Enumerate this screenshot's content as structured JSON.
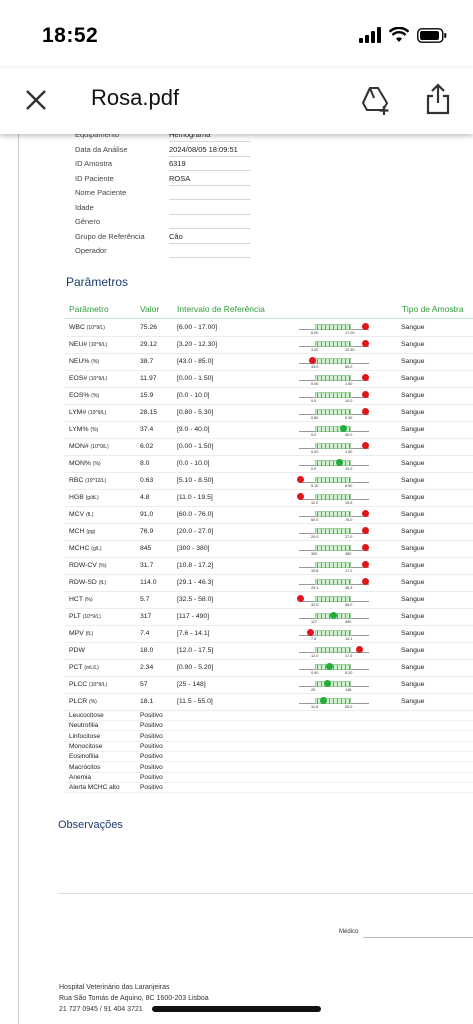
{
  "status": {
    "time": "18:52"
  },
  "nav": {
    "title": "Rosa.pdf",
    "icons": [
      "close-icon",
      "drive-add-icon",
      "share-icon"
    ]
  },
  "info": [
    {
      "label": "Equipamento",
      "value": "Hemograma"
    },
    {
      "label": "Data da Análise",
      "value": "2024/08/05 18:09:51"
    },
    {
      "label": "ID Amostra",
      "value": "6319"
    },
    {
      "label": "ID Paciente",
      "value": "ROSA"
    },
    {
      "label": "Nome Paciente",
      "value": ""
    },
    {
      "label": "Idade",
      "value": ""
    },
    {
      "label": "Gênero",
      "value": ""
    },
    {
      "label": "Grupo de Referência",
      "value": "Cão"
    },
    {
      "label": "Operador",
      "value": ""
    }
  ],
  "section_title": "Parâmetros",
  "headers": {
    "param": "Parâmetro",
    "valor": "Valor",
    "intervalo": "Intervalo de Referência",
    "tipo": "Tipo de Amostra"
  },
  "rows": [
    {
      "name": "WBC",
      "unit": "(10^9/L)",
      "value": "75.26",
      "range": "[6.00 - 17.00]",
      "lo": "6.00",
      "hi": "17.00",
      "pos": 1.0,
      "status": "high",
      "sample": "Sangue"
    },
    {
      "name": "NEU#",
      "unit": "(10^9/L)",
      "value": "29.12",
      "range": "[3.20 - 12.30]",
      "lo": "3.20",
      "hi": "12.30",
      "pos": 1.0,
      "status": "high",
      "sample": "Sangue"
    },
    {
      "name": "NEU%",
      "unit": "(%)",
      "value": "38.7",
      "range": "[43.0 - 85.0]",
      "lo": "43.0",
      "hi": "85.0",
      "pos": 0.18,
      "status": "low",
      "sample": "Sangue"
    },
    {
      "name": "EOS#",
      "unit": "(10^9/L)",
      "value": "11.97",
      "range": "[0.00 - 1.50]",
      "lo": "0.00",
      "hi": "1.50",
      "pos": 1.0,
      "status": "high",
      "sample": "Sangue"
    },
    {
      "name": "EOS%",
      "unit": "(%)",
      "value": "15.9",
      "range": "[0.0 - 10.0]",
      "lo": "0.0",
      "hi": "10.0",
      "pos": 1.0,
      "status": "high",
      "sample": "Sangue"
    },
    {
      "name": "LYM#",
      "unit": "(10^9/L)",
      "value": "28.15",
      "range": "[0.80 - 5.30]",
      "lo": "0.80",
      "hi": "5.30",
      "pos": 1.0,
      "status": "high",
      "sample": "Sangue"
    },
    {
      "name": "LYM%",
      "unit": "(%)",
      "value": "37.4",
      "range": "[9.0 - 40.0]",
      "lo": "9.0",
      "hi": "40.0",
      "pos": 0.66,
      "status": "normal",
      "sample": "Sangue"
    },
    {
      "name": "MON#",
      "unit": "(10^9/L)",
      "value": "6.02",
      "range": "[0.00 - 1.50]",
      "lo": "0.00",
      "hi": "1.50",
      "pos": 1.0,
      "status": "high",
      "sample": "Sangue"
    },
    {
      "name": "MON%",
      "unit": "(%)",
      "value": "8.0",
      "range": "[0.0 - 10.0]",
      "lo": "0.0",
      "hi": "10.0",
      "pos": 0.6,
      "status": "normal",
      "sample": "Sangue"
    },
    {
      "name": "RBC",
      "unit": "(10^12/L)",
      "value": "0.63",
      "range": "[5.10 - 8.50]",
      "lo": "5.10",
      "hi": "8.50",
      "pos": 0.0,
      "status": "low",
      "sample": "Sangue"
    },
    {
      "name": "HGB",
      "unit": "(g/dL)",
      "value": "4.8",
      "range": "[11.0 - 19.5]",
      "lo": "11.0",
      "hi": "19.5",
      "pos": 0.0,
      "status": "low",
      "sample": "Sangue"
    },
    {
      "name": "MCV",
      "unit": "(fL)",
      "value": "91.0",
      "range": "[60.0 - 76.0]",
      "lo": "60.0",
      "hi": "76.0",
      "pos": 1.0,
      "status": "high",
      "sample": "Sangue"
    },
    {
      "name": "MCH",
      "unit": "(pg)",
      "value": "76.9",
      "range": "[20.0 - 27.0]",
      "lo": "20.0",
      "hi": "27.0",
      "pos": 1.0,
      "status": "high",
      "sample": "Sangue"
    },
    {
      "name": "MCHC",
      "unit": "(g/L)",
      "value": "845",
      "range": "[300 - 380]",
      "lo": "300",
      "hi": "380",
      "pos": 1.0,
      "status": "high",
      "sample": "Sangue"
    },
    {
      "name": "RDW-CV",
      "unit": "(%)",
      "value": "31.7",
      "range": "[10.8 - 17.2]",
      "lo": "10.8",
      "hi": "17.2",
      "pos": 1.0,
      "status": "high",
      "sample": "Sangue"
    },
    {
      "name": "RDW-SD",
      "unit": "(fL)",
      "value": "114.0",
      "range": "[29.1 - 46.3]",
      "lo": "29.1",
      "hi": "46.3",
      "pos": 1.0,
      "status": "high",
      "sample": "Sangue"
    },
    {
      "name": "HCT",
      "unit": "(%)",
      "value": "5.7",
      "range": "[32.5 - 58.0]",
      "lo": "32.5",
      "hi": "58.0",
      "pos": 0.0,
      "status": "low",
      "sample": "Sangue"
    },
    {
      "name": "PLT",
      "unit": "(10^9/L)",
      "value": "317",
      "range": "[117 - 490]",
      "lo": "117",
      "hi": "490",
      "pos": 0.5,
      "status": "normal",
      "sample": "Sangue"
    },
    {
      "name": "MPV",
      "unit": "(fL)",
      "value": "7.4",
      "range": "[7.6 - 14.1]",
      "lo": "7.6",
      "hi": "14.1",
      "pos": 0.15,
      "status": "low",
      "sample": "Sangue"
    },
    {
      "name": "PDW",
      "unit": "",
      "value": "18.0",
      "range": "[12.0 - 17.5]",
      "lo": "12.0",
      "hi": "17.5",
      "pos": 0.9,
      "status": "high",
      "sample": "Sangue"
    },
    {
      "name": "PCT",
      "unit": "(mL/L)",
      "value": "2.34",
      "range": "[0.90 - 5.20]",
      "lo": "0.90",
      "hi": "5.20",
      "pos": 0.45,
      "status": "normal",
      "sample": "Sangue"
    },
    {
      "name": "PLCC",
      "unit": "(10^9/L)",
      "value": "57",
      "range": "[25 - 148]",
      "lo": "25",
      "hi": "148",
      "pos": 0.42,
      "status": "normal",
      "sample": "Sangue"
    },
    {
      "name": "PLCR",
      "unit": "(%)",
      "value": "18.1",
      "range": "[11.5 - 55.0]",
      "lo": "11.5",
      "hi": "55.0",
      "pos": 0.35,
      "status": "normal",
      "sample": "Sangue"
    }
  ],
  "flags": [
    {
      "name": "Leucocitose",
      "value": "Positivo"
    },
    {
      "name": "Neutrofilia",
      "value": "Positivo"
    },
    {
      "name": "Linfocitose",
      "value": "Positivo"
    },
    {
      "name": "Monocitose",
      "value": "Positivo"
    },
    {
      "name": "Eosinofilia",
      "value": "Positivo"
    },
    {
      "name": "Macrócitos",
      "value": "Positivo"
    },
    {
      "name": "Anemia",
      "value": "Positivo"
    },
    {
      "name": "Alerta MCHC alto",
      "value": "Positivo"
    }
  ],
  "observacoes_title": "Observações",
  "medico_label": "Médico",
  "footer": {
    "line1": "Hospital Veterinário das Laranjeiras",
    "line2": "Rua São Tomás de Aquino, 8C 1600-203 Lisboa",
    "line3": "21 727 0945 / 91 404 3721"
  },
  "colors": {
    "high_low": "#e0161b",
    "normal": "#1fae3a",
    "header_green": "#2e9c3c",
    "section_blue": "#1b3b6f"
  }
}
